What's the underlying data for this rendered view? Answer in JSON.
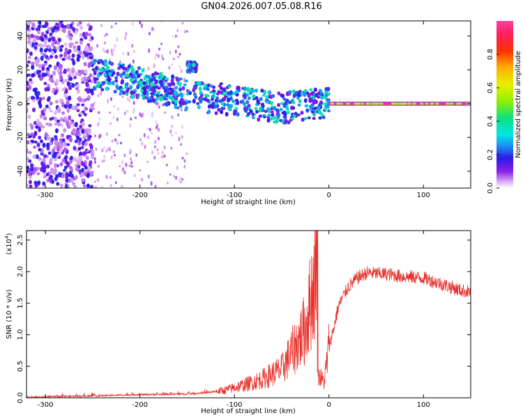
{
  "title": "GN04.2026.007.05.08.R16",
  "chart_data": [
    {
      "type": "heatmap",
      "title": "GN04.2026.007.05.08.R16",
      "xlabel": "Height of straight line (km)",
      "ylabel": "Frequency (Hz)",
      "xlim": [
        -320,
        150
      ],
      "ylim": [
        -50,
        49
      ],
      "x_ticks": [
        -300,
        -200,
        -100,
        0,
        100
      ],
      "y_ticks": [
        -40,
        -20,
        0,
        20,
        40
      ],
      "colorbar": {
        "label": "Normalized spectral amplitude",
        "range": [
          0,
          1
        ],
        "ticks": [
          0.0,
          0.2,
          0.4,
          0.6,
          0.8
        ]
      },
      "features": [
        {
          "name": "noise-band",
          "x_range": [
            -320,
            -250
          ],
          "y_range": [
            -50,
            49
          ],
          "amplitude": 0.2
        },
        {
          "name": "scatter-region",
          "x_range": [
            -250,
            -150
          ],
          "y_range": [
            -50,
            49
          ],
          "amplitude": 0.05
        },
        {
          "name": "main-track",
          "x": [
            -250,
            -200,
            -150,
            -100,
            -50,
            -20,
            0
          ],
          "y": [
            18,
            12,
            5,
            2,
            -3,
            0,
            0
          ],
          "amplitude": 0.35
        },
        {
          "name": "upper-cluster",
          "x": [
            -150,
            -140
          ],
          "y": [
            22,
            22
          ],
          "amplitude": 0.35
        },
        {
          "name": "carrier-line",
          "x_range": [
            0,
            150
          ],
          "y": 0,
          "amplitude": 0.95
        }
      ]
    },
    {
      "type": "line",
      "xlabel": "Height of straight line (km)",
      "ylabel": "SNR (10 * v/v)",
      "y_scale_label": "(x10",
      "y_scale_exp": "4",
      "xlim": [
        -320,
        150
      ],
      "ylim": [
        0,
        2.65
      ],
      "x_ticks": [
        -300,
        -200,
        -100,
        0,
        100
      ],
      "y_ticks": [
        0.0,
        0.5,
        1.0,
        1.5,
        2.0,
        2.5
      ],
      "series": [
        {
          "name": "SNR",
          "color": "#e8302a",
          "x": [
            -320,
            -250,
            -200,
            -150,
            -130,
            -110,
            -90,
            -70,
            -50,
            -40,
            -30,
            -25,
            -20,
            -15,
            -12,
            -8,
            -5,
            0,
            5,
            10,
            20,
            30,
            40,
            60,
            80,
            100,
            110,
            120,
            130,
            140,
            150
          ],
          "y": [
            0.01,
            0.03,
            0.05,
            0.06,
            0.08,
            0.12,
            0.2,
            0.3,
            0.45,
            0.7,
            0.95,
            1.1,
            1.5,
            1.9,
            0.4,
            0.3,
            0.25,
            0.8,
            1.1,
            1.45,
            1.75,
            1.9,
            1.98,
            1.96,
            1.92,
            1.9,
            1.85,
            1.8,
            1.75,
            1.7,
            1.68
          ]
        }
      ]
    }
  ]
}
